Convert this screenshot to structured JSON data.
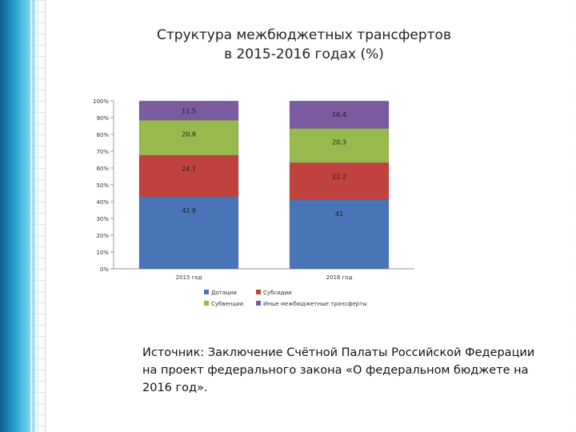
{
  "title": {
    "line1": "Структура межбюджетных трансфертов",
    "line2": "в 2015-2016 годах (%)"
  },
  "chart_data": {
    "type": "bar",
    "stacked": true,
    "categories": [
      "2015 год",
      "2016 год"
    ],
    "series": [
      {
        "name": "Дотации",
        "values": [
          42.9,
          41
        ],
        "color": "#4a74b8"
      },
      {
        "name": "Субсидии",
        "values": [
          24.7,
          22.2
        ],
        "color": "#c0423e"
      },
      {
        "name": "Субвенции",
        "values": [
          20.8,
          20.3
        ],
        "color": "#98b94e"
      },
      {
        "name": "Иные межбюджетные трансферты",
        "values": [
          11.5,
          16.4
        ],
        "color": "#7a5ba0"
      }
    ],
    "yticks": [
      "0%",
      "10%",
      "20%",
      "30%",
      "40%",
      "50%",
      "60%",
      "70%",
      "80%",
      "90%",
      "100%"
    ],
    "ylim": [
      0,
      100
    ],
    "legend_position": "bottom",
    "grid": false
  },
  "source_text": "Источник: Заключение Счётной Палаты Российской Федерации на проект федерального закона «О федеральном бюджете на 2016 год»."
}
